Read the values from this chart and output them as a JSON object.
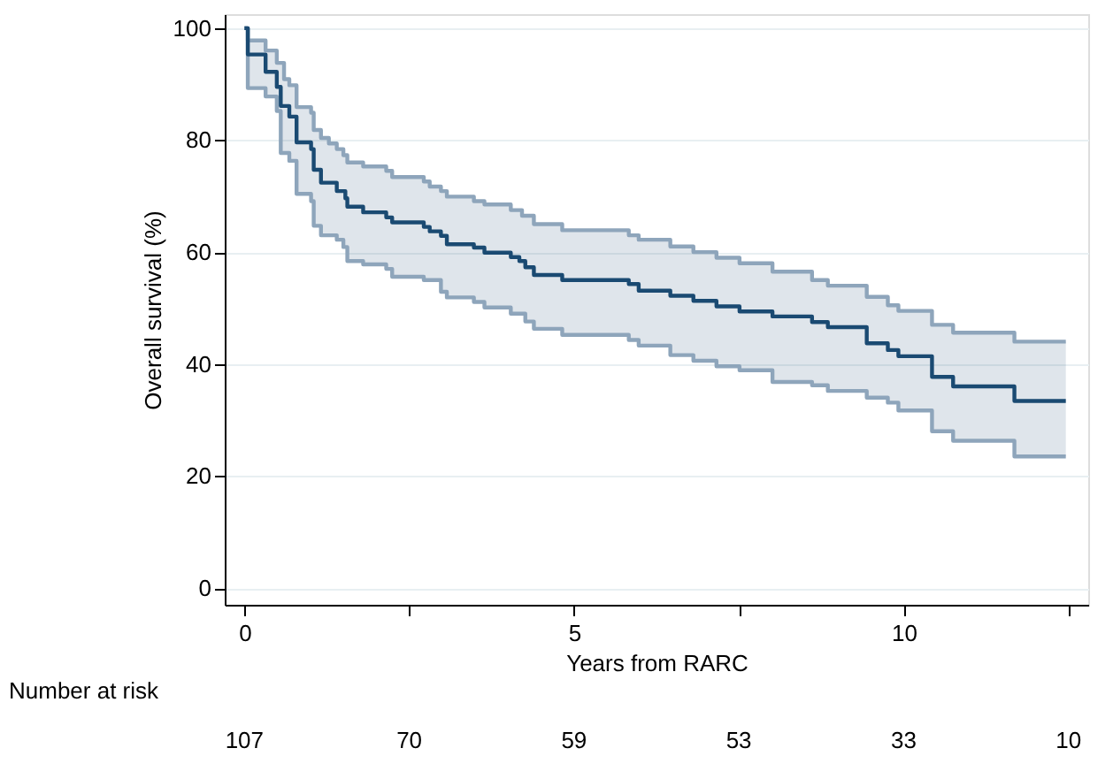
{
  "chart_data": {
    "type": "step",
    "xlabel": "Years from RARC",
    "ylabel": "Overall survival (%)",
    "x": [
      0,
      0.05,
      0.32,
      0.49,
      0.55,
      0.6,
      0.68,
      0.79,
      1.01,
      1.05,
      1.16,
      1.28,
      1.4,
      1.5,
      1.53,
      1.56,
      1.8,
      2.15,
      2.24,
      2.72,
      2.81,
      2.98,
      3.07,
      3.48,
      3.64,
      4.04,
      4.17,
      4.21,
      4.26,
      4.39,
      4.82,
      5.83,
      5.98,
      6.46,
      6.81,
      7.16,
      7.51,
      8.01,
      8.61,
      8.85,
      9.44,
      9.76,
      9.92,
      10.43,
      10.75,
      11.68,
      12.46
    ],
    "series": [
      {
        "color": "#8ea5bb",
        "values": [
          100,
          97.8,
          96,
          93.8,
          93.8,
          90.9,
          89.8,
          85.9,
          84.9,
          81.8,
          80.4,
          79.4,
          78.4,
          77.3,
          77.3,
          76,
          75.3,
          74.5,
          73.4,
          72.6,
          71.7,
          70.9,
          69.9,
          69.1,
          68.5,
          67.5,
          67.5,
          66.5,
          66.5,
          65,
          63.9,
          63,
          62.2,
          61,
          60,
          59,
          58,
          56.5,
          55,
          54,
          52,
          50.5,
          49.5,
          47,
          45.6,
          44,
          44
        ]
      },
      {
        "color": "#8ea5bb",
        "values": [
          100,
          89.3,
          87.8,
          85.2,
          77.7,
          77.7,
          76.3,
          70.4,
          69.1,
          64.7,
          63,
          63,
          62.2,
          60.9,
          60.9,
          58.4,
          57.8,
          57,
          55.6,
          55,
          55,
          52.9,
          51.9,
          51.1,
          50.1,
          49,
          49,
          49,
          47.6,
          46.3,
          45.2,
          44.3,
          43.3,
          41.6,
          40.6,
          39.6,
          38.9,
          36.8,
          36.2,
          35.2,
          34,
          33.1,
          31.7,
          28,
          26.3,
          23.5,
          23.5
        ]
      },
      {
        "color": "#1a4a72",
        "values": [
          100,
          95.3,
          92.2,
          89.5,
          86.1,
          86.1,
          84.2,
          79.6,
          78.4,
          74.7,
          72.4,
          72.4,
          70.9,
          70.9,
          69.6,
          68.1,
          67.1,
          66.2,
          65.3,
          64.5,
          63.7,
          62.9,
          61.4,
          60.8,
          59.9,
          59.1,
          58.4,
          58.4,
          57.3,
          55.9,
          55,
          54.3,
          53.1,
          52.2,
          51.3,
          50.3,
          49.4,
          48.5,
          47.5,
          46.6,
          43.7,
          42.5,
          41.4,
          37.7,
          36,
          33.4,
          33.4
        ],
        "upper": [
          100,
          97.8,
          96,
          93.8,
          93.8,
          90.9,
          89.8,
          85.9,
          84.9,
          81.8,
          80.4,
          79.4,
          78.4,
          77.3,
          77.3,
          76,
          75.3,
          74.5,
          73.4,
          72.6,
          71.7,
          70.9,
          69.9,
          69.1,
          68.5,
          67.5,
          67.5,
          66.5,
          66.5,
          65,
          63.9,
          63,
          62.2,
          61,
          60,
          59,
          58,
          56.5,
          55,
          54,
          52,
          50.5,
          49.5,
          47,
          45.6,
          44,
          44
        ],
        "lower": [
          100,
          89.3,
          87.8,
          85.2,
          77.7,
          77.7,
          76.3,
          70.4,
          69.1,
          64.7,
          63,
          63,
          62.2,
          60.9,
          60.9,
          58.4,
          57.8,
          57,
          55.6,
          55,
          55,
          52.9,
          51.9,
          51.1,
          50.1,
          49,
          49,
          49,
          47.6,
          46.3,
          45.2,
          44.3,
          43.3,
          41.6,
          40.6,
          39.6,
          38.9,
          36.8,
          36.2,
          35.2,
          34,
          33.1,
          31.7,
          28,
          26.3,
          23.5,
          23.5
        ]
      }
    ],
    "xlim": [
      -0.3,
      12.8
    ],
    "ylim": [
      -3,
      102.5
    ],
    "xticks": [
      0,
      {
        "value": 2.5,
        "label": null
      },
      5,
      {
        "value": 7.5,
        "label": null
      },
      10,
      {
        "value": 12.5,
        "label": null
      }
    ],
    "yticks": [
      0,
      20,
      40,
      60,
      80,
      100
    ],
    "grid": "y",
    "annotations": [
      "Number at risk",
      "107",
      "70",
      "59",
      "53",
      "33",
      "10"
    ]
  }
}
